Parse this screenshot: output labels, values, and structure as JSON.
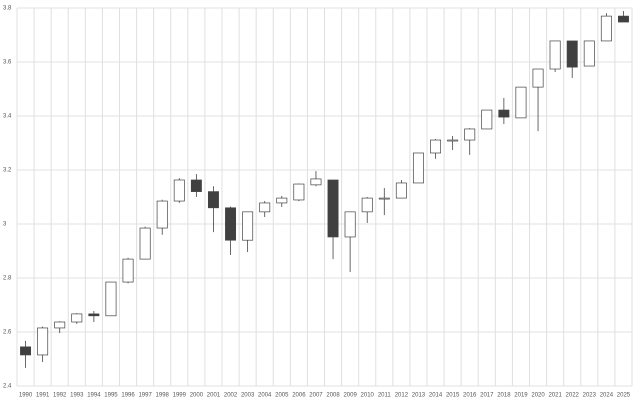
{
  "chart_data": {
    "type": "candlestick",
    "categories": [
      "1990",
      "1991",
      "1992",
      "1993",
      "1994",
      "1995",
      "1996",
      "1997",
      "1998",
      "1999",
      "2000",
      "2001",
      "2002",
      "2003",
      "2004",
      "2005",
      "2006",
      "2007",
      "2008",
      "2009",
      "2010",
      "2011",
      "2012",
      "2013",
      "2014",
      "2015",
      "2016",
      "2017",
      "2018",
      "2019",
      "2020",
      "2021",
      "2022",
      "2023",
      "2024",
      "2025"
    ],
    "open": [
      2.545,
      2.515,
      2.615,
      2.637,
      2.667,
      2.66,
      2.785,
      2.87,
      2.985,
      3.085,
      3.163,
      3.12,
      3.06,
      2.94,
      3.045,
      3.078,
      3.089,
      3.145,
      3.163,
      2.952,
      3.045,
      3.095,
      3.096,
      3.152,
      3.263,
      3.311,
      3.311,
      3.352,
      3.422,
      3.393,
      3.507,
      3.574,
      3.678,
      3.585,
      3.678,
      3.77
    ],
    "high": [
      2.567,
      2.62,
      2.64,
      2.67,
      2.678,
      2.785,
      2.875,
      2.99,
      3.09,
      3.17,
      3.185,
      3.14,
      3.065,
      3.045,
      3.085,
      3.104,
      3.15,
      3.196,
      3.163,
      3.045,
      3.1,
      3.133,
      3.163,
      3.263,
      3.315,
      3.326,
      3.355,
      3.422,
      3.467,
      3.507,
      3.574,
      3.678,
      3.678,
      3.678,
      3.781,
      3.789
    ],
    "low": [
      2.467,
      2.489,
      2.596,
      2.63,
      2.637,
      2.66,
      2.78,
      2.87,
      2.96,
      3.078,
      3.1,
      2.97,
      2.885,
      2.896,
      3.026,
      3.063,
      3.085,
      3.14,
      2.87,
      2.822,
      3.004,
      3.033,
      3.096,
      3.152,
      3.241,
      3.274,
      3.256,
      3.352,
      3.37,
      3.393,
      3.344,
      3.563,
      3.541,
      3.585,
      3.678,
      3.748
    ],
    "close": [
      2.515,
      2.615,
      2.637,
      2.667,
      2.66,
      2.785,
      2.87,
      2.985,
      3.085,
      3.163,
      3.12,
      3.06,
      2.94,
      3.045,
      3.078,
      3.096,
      3.148,
      3.167,
      2.952,
      3.045,
      3.096,
      3.096,
      3.152,
      3.263,
      3.311,
      3.311,
      3.352,
      3.422,
      3.396,
      3.507,
      3.574,
      3.678,
      3.581,
      3.678,
      3.77,
      3.748
    ],
    "up_color": "#ffffff",
    "down_color": "#404040",
    "ylim": [
      2.4,
      3.8
    ],
    "yticks": [
      2.4,
      2.6,
      2.8,
      3,
      3.2,
      3.4,
      3.6,
      3.8
    ],
    "grid": true
  }
}
